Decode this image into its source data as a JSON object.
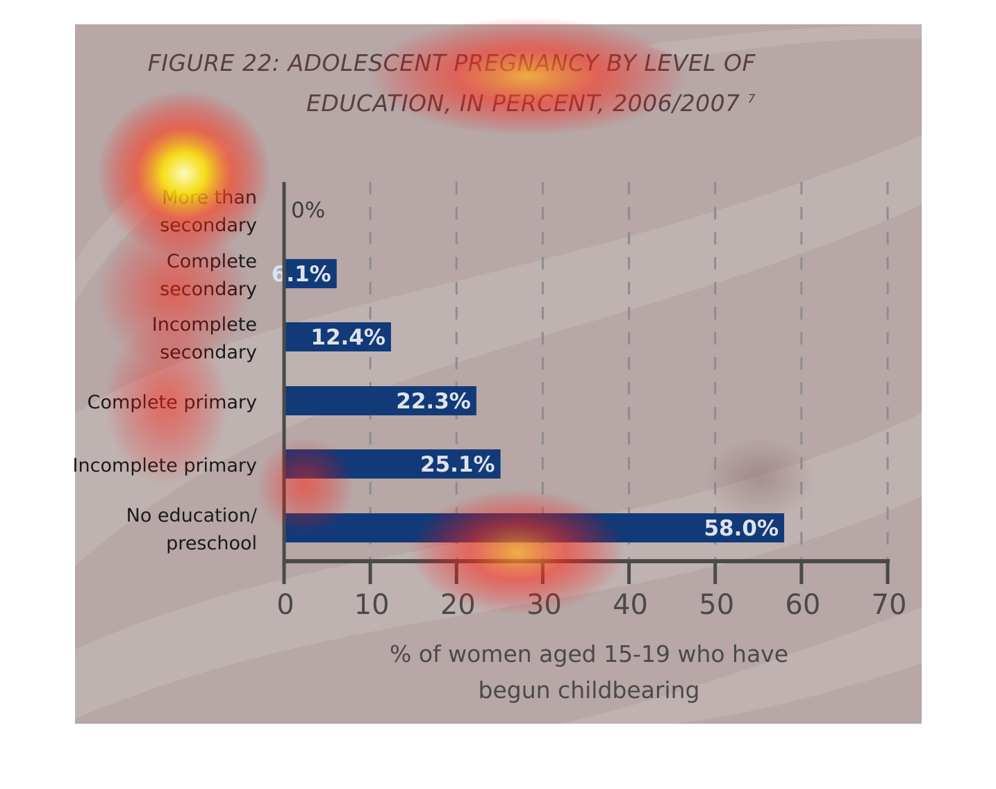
{
  "chart_data": {
    "type": "bar",
    "orientation": "horizontal",
    "title": "FIGURE 22: ADOLESCENT PREGNANCY BY LEVEL OF EDUCATION, IN PERCENT, 2006/2007",
    "title_line1": "FIGURE 22: ADOLESCENT PREGNANCY BY LEVEL OF",
    "title_line2": "EDUCATION, IN PERCENT, 2006/2007",
    "title_footnote": "7",
    "categories": [
      [
        "More than",
        "secondary"
      ],
      [
        "Complete",
        "secondary"
      ],
      [
        "Incomplete",
        "secondary"
      ],
      [
        "Complete primary"
      ],
      [
        "Incomplete primary"
      ],
      [
        "No education/",
        "preschool"
      ]
    ],
    "values": [
      0,
      6.1,
      12.4,
      22.3,
      25.1,
      58.0
    ],
    "value_labels": [
      "0%",
      "6.1%",
      "12.4%",
      "22.3%",
      "25.1%",
      "58.0%"
    ],
    "xlabel_line1": "% of women aged 15-19 who have",
    "xlabel_line2": "begun childbearing",
    "xlim": [
      0,
      70
    ],
    "xticks": [
      0,
      10,
      20,
      30,
      40,
      50,
      60,
      70
    ],
    "grid": "dashed vertical",
    "bar_color": "#123a78",
    "value_label_color": "#dde3ee",
    "text_color": "#1a1a1a",
    "axis_color": "#4a4a4a",
    "heatmap_overlay": true
  }
}
